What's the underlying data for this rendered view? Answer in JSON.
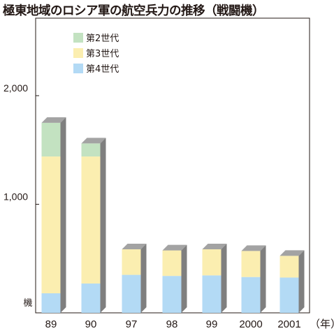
{
  "chart_data": {
    "type": "bar",
    "stacked": true,
    "title": "極東地域のロシア軍の航空兵力の推移（戦闘機）",
    "ylabel": "機",
    "xunit": "（年）",
    "categories": [
      "89",
      "90",
      "97",
      "98",
      "99",
      "2000",
      "2001"
    ],
    "series": [
      {
        "name": "第4世代",
        "color": "#b3daf5",
        "values": [
          180,
          270,
          350,
          340,
          345,
          330,
          325
        ]
      },
      {
        "name": "第3世代",
        "color": "#fbeeb0",
        "values": [
          1260,
          1170,
          235,
          235,
          240,
          240,
          200
        ]
      },
      {
        "name": "第2世代",
        "color": "#c3e2c1",
        "values": [
          310,
          120,
          0,
          0,
          0,
          0,
          0
        ]
      }
    ],
    "yticks": [
      {
        "value": 1000,
        "label": "1,000"
      },
      {
        "value": 2000,
        "label": "2,000"
      }
    ],
    "ylim": [
      0,
      2600
    ],
    "grid": false,
    "legend_position": "top-left",
    "legend_order": [
      "第2世代",
      "第3世代",
      "第4世代"
    ]
  }
}
